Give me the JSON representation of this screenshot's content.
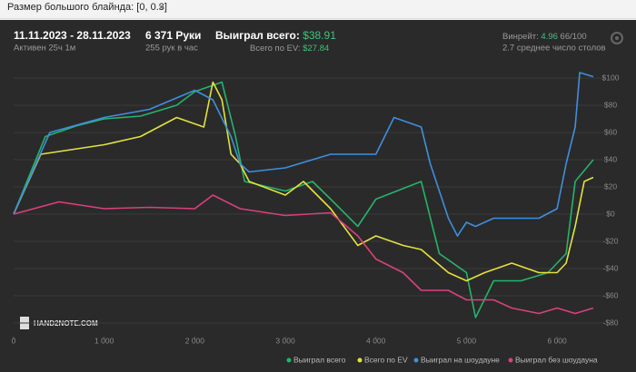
{
  "filter": "Размер большого блайнда: [0, 0.3]",
  "header": {
    "date_range": "11.11.2023 - 28.11.2023",
    "active": "Активен 25ч 1м",
    "hands": "6 371 Руки",
    "hands_per_hour": "255 рук в час",
    "won_label": "Выиграл всего:",
    "won_value": "$38.91",
    "ev_label": "Всего по EV:",
    "ev_value": "$27.84",
    "winrate_label": "Винрейт:",
    "winrate_value": "4.96",
    "winrate_unit": "66/100",
    "tables": "2.7 среднее число столов"
  },
  "watermark": "HAND2NOTE.COM",
  "chart_data": {
    "type": "line",
    "xlim": [
      0,
      6400
    ],
    "ylim": [
      -90,
      105
    ],
    "xticks": [
      0,
      {
        "value": 1000,
        "label": "1 000"
      },
      {
        "value": 2000,
        "label": "2 000"
      },
      {
        "value": 3000,
        "label": "3 000"
      },
      {
        "value": 4000,
        "label": "4 000"
      },
      {
        "value": 5000,
        "label": "5 000"
      },
      {
        "value": 6000,
        "label": "6 000"
      }
    ],
    "yticks": [
      {
        "value": 100,
        "label": "$100"
      },
      {
        "value": 80,
        "label": "$80"
      },
      {
        "value": 60,
        "label": "$60"
      },
      {
        "value": 40,
        "label": "$40"
      },
      {
        "value": 20,
        "label": "$20"
      },
      {
        "value": 0,
        "label": "$0"
      },
      {
        "value": -20,
        "label": "-$20"
      },
      {
        "value": -40,
        "label": "-$40"
      },
      {
        "value": -60,
        "label": "-$60"
      },
      {
        "value": -80,
        "label": "-$80"
      }
    ],
    "grid": true,
    "legend": "bottom-right",
    "series": [
      {
        "name": "Выиграл всего",
        "color": "#27b36a",
        "x": [
          0,
          350,
          700,
          1000,
          1400,
          1800,
          2000,
          2300,
          2450,
          2550,
          3000,
          3300,
          3500,
          3800,
          4000,
          4500,
          4700,
          5000,
          5100,
          5300,
          5600,
          5900,
          6100,
          6200,
          6400
        ],
        "values": [
          0,
          57,
          65,
          70,
          72,
          80,
          90,
          97,
          57,
          24,
          17,
          24,
          11,
          -9,
          11,
          24,
          -29,
          -43,
          -76,
          -49,
          -49,
          -43,
          -29,
          24,
          40
        ]
      },
      {
        "name": "Всего по EV",
        "color": "#e4e23a",
        "x": [
          0,
          300,
          600,
          1000,
          1400,
          1800,
          2100,
          2200,
          2300,
          2400,
          2500,
          2600,
          3000,
          3200,
          3500,
          3800,
          4000,
          4300,
          4500,
          4800,
          5000,
          5200,
          5500,
          5800,
          6000,
          6100,
          6200,
          6300,
          6400
        ],
        "values": [
          0,
          44,
          47,
          51,
          57,
          71,
          64,
          97,
          84,
          44,
          37,
          24,
          14,
          24,
          4,
          -23,
          -16,
          -23,
          -26,
          -43,
          -49,
          -43,
          -36,
          -43,
          -43,
          -36,
          -9,
          24,
          27
        ]
      },
      {
        "name": "Выиграл на шоудауне",
        "color": "#3f8fdc",
        "x": [
          0,
          400,
          1000,
          1500,
          2000,
          2200,
          2400,
          2500,
          2600,
          3000,
          3500,
          4000,
          4200,
          4500,
          4600,
          4800,
          4900,
          5000,
          5100,
          5300,
          5500,
          5800,
          6000,
          6100,
          6200,
          6250,
          6400
        ],
        "values": [
          0,
          60,
          71,
          77,
          91,
          84,
          57,
          37,
          31,
          34,
          44,
          44,
          71,
          64,
          37,
          -3,
          -16,
          -6,
          -9,
          -3,
          -3,
          -3,
          4,
          37,
          64,
          104,
          101
        ]
      },
      {
        "name": "Выиграл без шоудауна",
        "color": "#d9417a",
        "x": [
          0,
          500,
          1000,
          1500,
          2000,
          2200,
          2500,
          3000,
          3500,
          3800,
          4000,
          4300,
          4500,
          4800,
          5000,
          5300,
          5500,
          5800,
          6000,
          6200,
          6400
        ],
        "values": [
          0,
          9,
          4,
          5,
          4,
          14,
          4,
          -1,
          1,
          -16,
          -33,
          -43,
          -56,
          -56,
          -63,
          -63,
          -69,
          -73,
          -69,
          -73,
          -69
        ]
      }
    ]
  }
}
